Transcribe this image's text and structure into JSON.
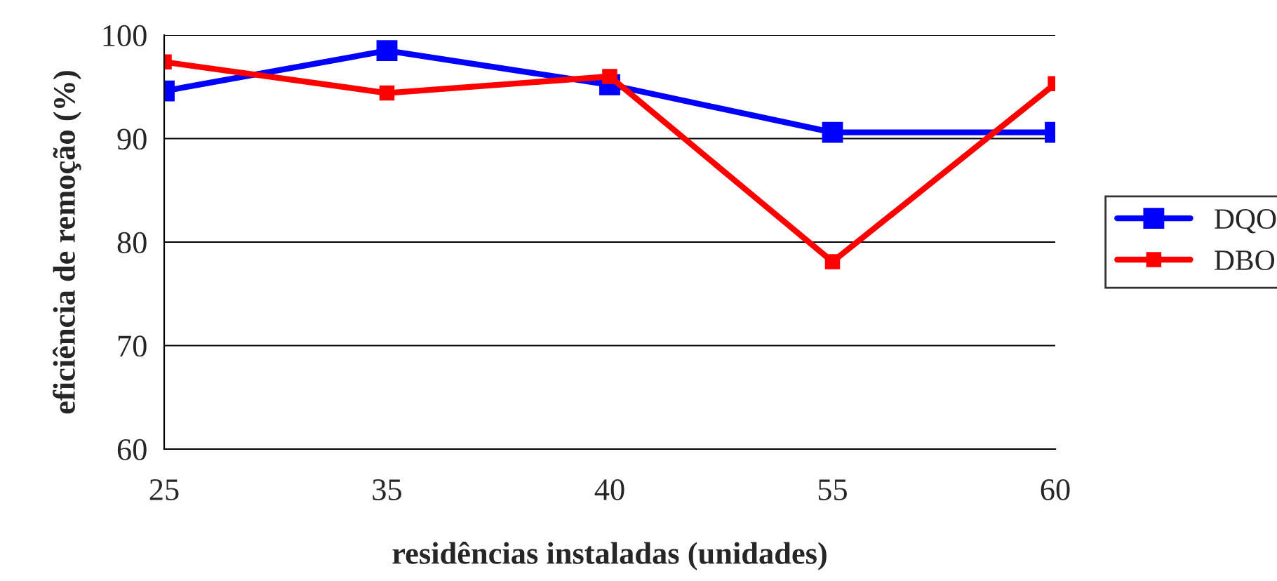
{
  "chart_data": {
    "type": "line",
    "xlabel": "residências instaladas (unidades)",
    "ylabel": "eficiência de remoção (%)",
    "categories": [
      "25",
      "35",
      "40",
      "55",
      "60"
    ],
    "series": [
      {
        "name": "DQO",
        "color": "#0000ff",
        "values": [
          94.6,
          98.5,
          95.2,
          90.6,
          90.6
        ]
      },
      {
        "name": "DBO",
        "color": "#ff0000",
        "values": [
          97.4,
          94.4,
          96.0,
          78.1,
          95.3
        ]
      }
    ],
    "ylim": [
      60,
      100
    ],
    "yticks": [
      60,
      70,
      80,
      90,
      100
    ],
    "grid": "y",
    "legend": "right",
    "marker": "square",
    "line_style": "solid"
  }
}
